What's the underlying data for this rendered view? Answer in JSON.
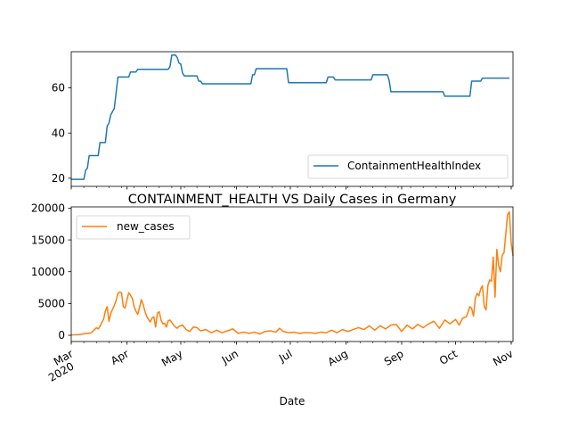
{
  "chart_data": [
    {
      "type": "line",
      "series": [
        {
          "name": "ContainmentHealthIndex",
          "color": "#1f77b4",
          "points": [
            [
              "2020-03-01",
              19.5
            ],
            [
              "2020-03-08",
              19.5
            ],
            [
              "2020-03-09",
              23.5
            ],
            [
              "2020-03-10",
              24.5
            ],
            [
              "2020-03-11",
              30
            ],
            [
              "2020-03-16",
              30
            ],
            [
              "2020-03-17",
              35.8
            ],
            [
              "2020-03-20",
              35.8
            ],
            [
              "2020-03-21",
              43
            ],
            [
              "2020-03-22",
              44.5
            ],
            [
              "2020-03-23",
              48
            ],
            [
              "2020-03-25",
              51
            ],
            [
              "2020-03-26",
              58
            ],
            [
              "2020-03-27",
              64.8
            ],
            [
              "2020-04-02",
              64.8
            ],
            [
              "2020-04-03",
              67
            ],
            [
              "2020-04-06",
              67
            ],
            [
              "2020-04-07",
              68.2
            ],
            [
              "2020-04-24",
              68.2
            ],
            [
              "2020-04-25",
              69.5
            ],
            [
              "2020-04-26",
              74.5
            ],
            [
              "2020-04-28",
              74.5
            ],
            [
              "2020-04-29",
              73.5
            ],
            [
              "2020-04-30",
              71
            ],
            [
              "2020-05-01",
              70.5
            ],
            [
              "2020-05-02",
              66.5
            ],
            [
              "2020-05-03",
              65.3
            ],
            [
              "2020-05-10",
              65.3
            ],
            [
              "2020-05-11",
              63
            ],
            [
              "2020-05-12",
              63
            ],
            [
              "2020-05-13",
              61.8
            ],
            [
              "2020-06-09",
              61.8
            ],
            [
              "2020-06-10",
              65.8
            ],
            [
              "2020-06-11",
              65.8
            ],
            [
              "2020-06-12",
              68.5
            ],
            [
              "2020-06-29",
              68.5
            ],
            [
              "2020-06-30",
              62.3
            ],
            [
              "2020-07-21",
              62.3
            ],
            [
              "2020-07-22",
              64.8
            ],
            [
              "2020-07-25",
              64.8
            ],
            [
              "2020-07-26",
              63.5
            ],
            [
              "2020-08-15",
              63.5
            ],
            [
              "2020-08-16",
              65.8
            ],
            [
              "2020-08-24",
              65.8
            ],
            [
              "2020-08-25",
              63.5
            ],
            [
              "2020-08-26",
              58.3
            ],
            [
              "2020-09-24",
              58.3
            ],
            [
              "2020-09-25",
              56.3
            ],
            [
              "2020-10-09",
              56.3
            ],
            [
              "2020-10-10",
              63
            ],
            [
              "2020-10-15",
              63
            ],
            [
              "2020-10-16",
              64.3
            ],
            [
              "2020-10-31",
              64.3
            ]
          ]
        }
      ],
      "x_range": [
        "2020-03-01",
        "2020-10-31"
      ],
      "ylim": [
        16.4,
        76
      ],
      "yticks": [
        "20",
        "40",
        "60"
      ],
      "legend": "lower right"
    },
    {
      "type": "line",
      "title": "CONTAINMENT_HEALTH VS Daily Cases in Germany",
      "xlabel": "Date",
      "series": [
        {
          "name": "new_cases",
          "color": "#ff7f0e",
          "points": [
            [
              "2020-03-01",
              50
            ],
            [
              "2020-03-05",
              100
            ],
            [
              "2020-03-10",
              300
            ],
            [
              "2020-03-12",
              350
            ],
            [
              "2020-03-14",
              900
            ],
            [
              "2020-03-15",
              1200
            ],
            [
              "2020-03-16",
              1000
            ],
            [
              "2020-03-17",
              1400
            ],
            [
              "2020-03-18",
              2000
            ],
            [
              "2020-03-19",
              2500
            ],
            [
              "2020-03-20",
              3800
            ],
            [
              "2020-03-21",
              4500
            ],
            [
              "2020-03-22",
              2200
            ],
            [
              "2020-03-23",
              3400
            ],
            [
              "2020-03-24",
              4100
            ],
            [
              "2020-03-25",
              4700
            ],
            [
              "2020-03-26",
              5500
            ],
            [
              "2020-03-27",
              6600
            ],
            [
              "2020-03-28",
              6800
            ],
            [
              "2020-03-29",
              6700
            ],
            [
              "2020-03-30",
              4500
            ],
            [
              "2020-03-31",
              4300
            ],
            [
              "2020-04-01",
              5500
            ],
            [
              "2020-04-02",
              6700
            ],
            [
              "2020-04-03",
              6300
            ],
            [
              "2020-04-04",
              5800
            ],
            [
              "2020-04-05",
              4500
            ],
            [
              "2020-04-06",
              3800
            ],
            [
              "2020-04-07",
              3300
            ],
            [
              "2020-04-08",
              4300
            ],
            [
              "2020-04-09",
              5600
            ],
            [
              "2020-04-10",
              4900
            ],
            [
              "2020-04-11",
              3800
            ],
            [
              "2020-04-12",
              3000
            ],
            [
              "2020-04-13",
              2500
            ],
            [
              "2020-04-14",
              2100
            ],
            [
              "2020-04-15",
              2700
            ],
            [
              "2020-04-16",
              2900
            ],
            [
              "2020-04-17",
              1300
            ],
            [
              "2020-04-18",
              3500
            ],
            [
              "2020-04-19",
              3700
            ],
            [
              "2020-04-20",
              2400
            ],
            [
              "2020-04-21",
              1800
            ],
            [
              "2020-04-22",
              1900
            ],
            [
              "2020-04-23",
              1300
            ],
            [
              "2020-04-24",
              2300
            ],
            [
              "2020-04-25",
              2400
            ],
            [
              "2020-04-26",
              2000
            ],
            [
              "2020-04-27",
              1600
            ],
            [
              "2020-04-28",
              1300
            ],
            [
              "2020-04-29",
              1100
            ],
            [
              "2020-04-30",
              1400
            ],
            [
              "2020-05-02",
              1600
            ],
            [
              "2020-05-04",
              900
            ],
            [
              "2020-05-06",
              600
            ],
            [
              "2020-05-08",
              1300
            ],
            [
              "2020-05-10",
              1200
            ],
            [
              "2020-05-12",
              700
            ],
            [
              "2020-05-15",
              900
            ],
            [
              "2020-05-18",
              400
            ],
            [
              "2020-05-21",
              800
            ],
            [
              "2020-05-24",
              400
            ],
            [
              "2020-05-27",
              700
            ],
            [
              "2020-05-30",
              1000
            ],
            [
              "2020-06-02",
              300
            ],
            [
              "2020-06-05",
              500
            ],
            [
              "2020-06-08",
              300
            ],
            [
              "2020-06-11",
              500
            ],
            [
              "2020-06-14",
              200
            ],
            [
              "2020-06-17",
              600
            ],
            [
              "2020-06-20",
              700
            ],
            [
              "2020-06-23",
              500
            ],
            [
              "2020-06-25",
              1100
            ],
            [
              "2020-06-27",
              600
            ],
            [
              "2020-06-30",
              400
            ],
            [
              "2020-07-03",
              500
            ],
            [
              "2020-07-06",
              300
            ],
            [
              "2020-07-09",
              400
            ],
            [
              "2020-07-12",
              400
            ],
            [
              "2020-07-15",
              300
            ],
            [
              "2020-07-18",
              500
            ],
            [
              "2020-07-21",
              400
            ],
            [
              "2020-07-24",
              800
            ],
            [
              "2020-07-27",
              400
            ],
            [
              "2020-07-30",
              900
            ],
            [
              "2020-08-02",
              600
            ],
            [
              "2020-08-05",
              900
            ],
            [
              "2020-08-08",
              1200
            ],
            [
              "2020-08-11",
              900
            ],
            [
              "2020-08-14",
              1500
            ],
            [
              "2020-08-17",
              800
            ],
            [
              "2020-08-20",
              1500
            ],
            [
              "2020-08-23",
              1000
            ],
            [
              "2020-08-26",
              1600
            ],
            [
              "2020-08-29",
              1700
            ],
            [
              "2020-09-01",
              600
            ],
            [
              "2020-09-04",
              1600
            ],
            [
              "2020-09-07",
              1000
            ],
            [
              "2020-09-10",
              1700
            ],
            [
              "2020-09-13",
              1200
            ],
            [
              "2020-09-16",
              1800
            ],
            [
              "2020-09-19",
              2200
            ],
            [
              "2020-09-22",
              1100
            ],
            [
              "2020-09-25",
              2400
            ],
            [
              "2020-09-28",
              1800
            ],
            [
              "2020-10-01",
              2500
            ],
            [
              "2020-10-03",
              1600
            ],
            [
              "2020-10-05",
              2700
            ],
            [
              "2020-10-07",
              2900
            ],
            [
              "2020-10-09",
              4500
            ],
            [
              "2020-10-10",
              4200
            ],
            [
              "2020-10-11",
              3000
            ],
            [
              "2020-10-12",
              5800
            ],
            [
              "2020-10-13",
              6600
            ],
            [
              "2020-10-14",
              6200
            ],
            [
              "2020-10-15",
              7300
            ],
            [
              "2020-10-16",
              7800
            ],
            [
              "2020-10-17",
              4500
            ],
            [
              "2020-10-18",
              4000
            ],
            [
              "2020-10-19",
              7800
            ],
            [
              "2020-10-20",
              8700
            ],
            [
              "2020-10-21",
              8500
            ],
            [
              "2020-10-22",
              12300
            ],
            [
              "2020-10-23",
              6000
            ],
            [
              "2020-10-24",
              13500
            ],
            [
              "2020-10-25",
              11000
            ],
            [
              "2020-10-26",
              10000
            ],
            [
              "2020-10-27",
              12600
            ],
            [
              "2020-10-28",
              13000
            ],
            [
              "2020-10-29",
              16000
            ],
            [
              "2020-10-30",
              19000
            ],
            [
              "2020-10-31",
              19400
            ],
            [
              "2020-11-01",
              14500
            ],
            [
              "2020-11-02",
              12500
            ]
          ]
        }
      ],
      "x_range": [
        "2020-03-01",
        "2020-11-02"
      ],
      "ylim": [
        -980,
        20200
      ],
      "yticks": [
        "0",
        "5000",
        "10000",
        "15000",
        "20000"
      ],
      "xticks": [
        {
          "date": "2020-03-01",
          "label": "Mar",
          "sublabel": "2020"
        },
        {
          "date": "2020-04-01",
          "label": "Apr"
        },
        {
          "date": "2020-05-01",
          "label": "May"
        },
        {
          "date": "2020-06-01",
          "label": "Jun"
        },
        {
          "date": "2020-07-01",
          "label": "Jul"
        },
        {
          "date": "2020-08-01",
          "label": "Aug"
        },
        {
          "date": "2020-09-01",
          "label": "Sep"
        },
        {
          "date": "2020-10-01",
          "label": "Oct"
        },
        {
          "date": "2020-11-01",
          "label": "Nov"
        }
      ],
      "legend": "upper left"
    }
  ]
}
